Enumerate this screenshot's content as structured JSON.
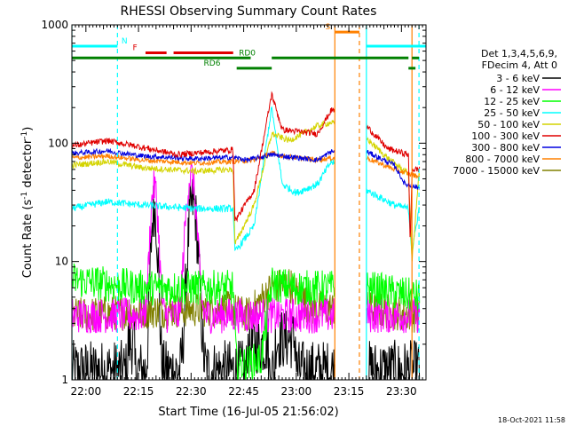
{
  "chart_data": {
    "type": "line",
    "title": "RHESSI Observing Summary Count Rates",
    "xlabel": "Start Time (16-Jul-05 21:56:02)",
    "ylabel_parts": [
      "Count Rate (s",
      "-1",
      " detector",
      "-1",
      ")"
    ],
    "ylog": true,
    "ylim": [
      1,
      1000
    ],
    "xlim_min": [
      0,
      101
    ],
    "yticks": [
      {
        "v": 1,
        "label": "1"
      },
      {
        "v": 10,
        "label": "10"
      },
      {
        "v": 100,
        "label": "100"
      },
      {
        "v": 1000,
        "label": "1000"
      }
    ],
    "xticks": [
      {
        "t": 4,
        "label": "22:00"
      },
      {
        "t": 19,
        "label": "22:15"
      },
      {
        "t": 34,
        "label": "22:30"
      },
      {
        "t": 49,
        "label": "22:45"
      },
      {
        "t": 64,
        "label": "23:00"
      },
      {
        "t": 79,
        "label": "23:15"
      },
      {
        "t": 94,
        "label": "23:30"
      }
    ],
    "legend_title_lines": [
      "Det 1,3,4,5,6,9,",
      "FDecim 4, Att 0"
    ],
    "series": [
      {
        "name": "3 - 6 keV",
        "color": "#000000",
        "legend_color": "#000000"
      },
      {
        "name": "6 - 12 keV",
        "color": "#ff00ff",
        "legend_color": "#ff00ff"
      },
      {
        "name": "12 - 25 keV",
        "color": "#00ff00",
        "legend_color": "#00ff00"
      },
      {
        "name": "25 - 50 keV",
        "color": "#00ffff",
        "legend_color": "#00ffff"
      },
      {
        "name": "50 - 100 keV",
        "color": "#d4d400",
        "legend_color": "#d4d400"
      },
      {
        "name": "100 - 300 keV",
        "color": "#e00000",
        "legend_color": "#e00000"
      },
      {
        "name": "300 - 800 keV",
        "color": "#0000e0",
        "legend_color": "#0000e0"
      },
      {
        "name": "800 - 7000 keV",
        "color": "#ff8000",
        "legend_color": "#ff8000"
      },
      {
        "name": "7000 - 15000 keV",
        "color": "#808000",
        "legend_color": "#808000"
      }
    ],
    "flag_bars": [
      {
        "label": "N",
        "color": "#00ffff",
        "label_t": 15,
        "segments": [
          [
            0,
            13
          ],
          [
            84,
            101
          ]
        ],
        "y": 660
      },
      {
        "label": "F",
        "color": "#e00000",
        "label_t": 18,
        "segments": [
          [
            21,
            27
          ],
          [
            29,
            46
          ]
        ],
        "y": 580
      },
      {
        "label": "S",
        "color": "#ff8000",
        "label_t": 73,
        "segments": [
          [
            75,
            82
          ]
        ],
        "y": 870
      },
      {
        "label": "RD0",
        "color": "#008000",
        "label_t": 50,
        "segments": [
          [
            0,
            51
          ],
          [
            57,
            96
          ],
          [
            97,
            99
          ]
        ],
        "y": 525
      },
      {
        "label": "RD6",
        "color": "#008000",
        "label_t": 40,
        "segments": [
          [
            47,
            57
          ],
          [
            96,
            98
          ]
        ],
        "y": 430
      }
    ],
    "vlines": [
      {
        "t": 0,
        "color": "#00ffff",
        "style": "solid"
      },
      {
        "t": 13,
        "color": "#00ffff",
        "style": "dashed"
      },
      {
        "t": 84,
        "color": "#00ffff",
        "style": "solid"
      },
      {
        "t": 99,
        "color": "#00ffff",
        "style": "dashed"
      },
      {
        "t": 75,
        "color": "#ff8000",
        "style": "solid"
      },
      {
        "t": 82,
        "color": "#ff8000",
        "style": "dashed"
      },
      {
        "t": 97,
        "color": "#ff8000",
        "style": "solid"
      }
    ],
    "data_gaps": [
      [
        75,
        84
      ]
    ],
    "annotation": "18-Oct-2021 11:58"
  }
}
